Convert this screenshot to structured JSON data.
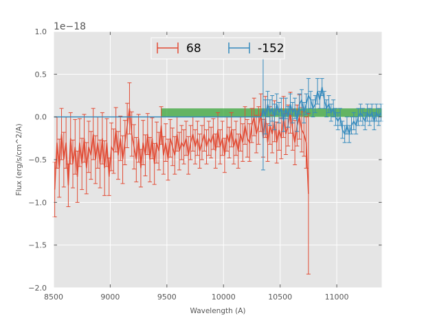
{
  "chart_data": {
    "type": "line",
    "title": "",
    "xlabel": "Wavelength (A)",
    "ylabel": "Flux (erg/s/cm^2/A)",
    "y_offset_label": "1e−18",
    "xlim": [
      8500,
      11400
    ],
    "ylim": [
      -2.0,
      1.0
    ],
    "y_scale_factor": 1e-18,
    "xticks": [
      8500,
      9000,
      9500,
      10000,
      10500,
      11000
    ],
    "xtick_labels": [
      "8500",
      "9000",
      "9500",
      "10000",
      "10500",
      "11000"
    ],
    "yticks": [
      -2.0,
      -1.5,
      -1.0,
      -0.5,
      0.0,
      0.5,
      1.0
    ],
    "ytick_labels": [
      "−2.0",
      "−1.5",
      "−1.0",
      "−0.5",
      "0.0",
      "0.5",
      "1.0"
    ],
    "grid": true,
    "background": "#e5e5e5",
    "legend": {
      "placement": "top-center",
      "columns": 2
    },
    "series": [
      {
        "name": "68",
        "color": "#e24a33",
        "x": [
          8510,
          8530,
          8550,
          8570,
          8590,
          8610,
          8630,
          8650,
          8670,
          8690,
          8710,
          8730,
          8750,
          8770,
          8790,
          8810,
          8830,
          8850,
          8870,
          8890,
          8910,
          8930,
          8950,
          8970,
          8990,
          9010,
          9030,
          9050,
          9070,
          9090,
          9110,
          9130,
          9150,
          9170,
          9190,
          9210,
          9230,
          9250,
          9270,
          9290,
          9310,
          9330,
          9350,
          9370,
          9390,
          9410,
          9430,
          9450,
          9470,
          9490,
          9510,
          9530,
          9550,
          9570,
          9590,
          9610,
          9630,
          9650,
          9670,
          9690,
          9710,
          9730,
          9750,
          9770,
          9790,
          9810,
          9830,
          9850,
          9870,
          9890,
          9910,
          9930,
          9950,
          9970,
          9990,
          10010,
          10030,
          10050,
          10070,
          10090,
          10110,
          10130,
          10150,
          10170,
          10190,
          10210,
          10230,
          10250,
          10270,
          10290,
          10310,
          10330,
          10350,
          10370,
          10390,
          10410,
          10430,
          10450,
          10470,
          10490,
          10510,
          10530,
          10550,
          10570,
          10590,
          10610,
          10630,
          10650,
          10670,
          10690,
          10710,
          10730,
          10750
        ],
        "y": [
          -0.85,
          -0.3,
          -0.6,
          -0.2,
          -0.5,
          -0.3,
          -0.8,
          -0.25,
          -0.55,
          -0.35,
          -0.7,
          -0.3,
          -0.55,
          -0.25,
          -0.6,
          -0.35,
          -0.45,
          -0.2,
          -0.5,
          -0.3,
          -0.55,
          -0.25,
          -0.6,
          -0.3,
          -0.7,
          -0.35,
          -0.4,
          -0.15,
          -0.45,
          -0.25,
          -0.5,
          -0.3,
          -0.1,
          0.1,
          -0.2,
          -0.35,
          -0.5,
          -0.25,
          -0.6,
          -0.3,
          -0.45,
          -0.2,
          -0.5,
          -0.25,
          -0.55,
          -0.3,
          -0.4,
          -0.1,
          -0.45,
          -0.3,
          -0.5,
          -0.25,
          -0.35,
          -0.45,
          -0.2,
          -0.4,
          -0.3,
          -0.35,
          -0.25,
          -0.45,
          -0.3,
          -0.2,
          -0.35,
          -0.25,
          -0.4,
          -0.3,
          -0.2,
          -0.35,
          -0.25,
          -0.3,
          -0.2,
          -0.4,
          -0.15,
          -0.35,
          -0.25,
          -0.45,
          -0.2,
          -0.3,
          -0.15,
          -0.35,
          -0.25,
          -0.4,
          -0.2,
          -0.3,
          -0.1,
          -0.25,
          -0.3,
          -0.1,
          0.0,
          -0.2,
          -0.1,
          0.05,
          -0.25,
          0.0,
          -0.3,
          -0.1,
          -0.2,
          -0.05,
          -0.3,
          -0.15,
          -0.25,
          0.0,
          -0.2,
          -0.1,
          0.05,
          -0.15,
          -0.3,
          -0.1,
          0.0,
          -0.15,
          -0.2,
          -0.3,
          -0.9
        ],
        "yerr": [
          0.32,
          0.3,
          0.34,
          0.3,
          0.32,
          0.3,
          0.25,
          0.3,
          0.28,
          0.32,
          0.3,
          0.28,
          0.3,
          0.28,
          0.3,
          0.3,
          0.28,
          0.3,
          0.28,
          0.3,
          0.28,
          0.3,
          0.32,
          0.28,
          0.22,
          0.28,
          0.26,
          0.26,
          0.28,
          0.26,
          0.28,
          0.26,
          0.26,
          0.3,
          0.26,
          0.26,
          0.26,
          0.28,
          0.22,
          0.26,
          0.24,
          0.24,
          0.26,
          0.24,
          0.24,
          0.24,
          0.22,
          0.22,
          0.22,
          0.22,
          0.24,
          0.22,
          0.22,
          0.22,
          0.2,
          0.22,
          0.2,
          0.2,
          0.2,
          0.22,
          0.2,
          0.2,
          0.2,
          0.2,
          0.2,
          0.2,
          0.2,
          0.2,
          0.2,
          0.18,
          0.18,
          0.2,
          0.2,
          0.2,
          0.2,
          0.2,
          0.2,
          0.18,
          0.2,
          0.2,
          0.2,
          0.2,
          0.2,
          0.22,
          0.22,
          0.22,
          0.22,
          0.2,
          0.22,
          0.22,
          0.22,
          0.22,
          0.22,
          0.24,
          0.22,
          0.22,
          0.22,
          0.24,
          0.24,
          0.24,
          0.24,
          0.24,
          0.24,
          0.24,
          0.24,
          0.24,
          0.26,
          0.24,
          0.26,
          0.26,
          0.26,
          0.3,
          0.94
        ]
      },
      {
        "name": "-152",
        "color": "#348abd",
        "x": [
          8500,
          8600,
          8700,
          8800,
          8900,
          9000,
          9100,
          9200,
          9300,
          9400,
          9500,
          9600,
          9700,
          9800,
          9900,
          10000,
          10100,
          10200,
          10300,
          10335,
          10350,
          10370,
          10390,
          10410,
          10430,
          10450,
          10470,
          10490,
          10510,
          10530,
          10550,
          10570,
          10590,
          10610,
          10630,
          10650,
          10670,
          10690,
          10710,
          10730,
          10750,
          10770,
          10790,
          10810,
          10830,
          10850,
          10870,
          10890,
          10910,
          10930,
          10950,
          10970,
          10990,
          11010,
          11030,
          11050,
          11070,
          11090,
          11110,
          11130,
          11150,
          11170,
          11190,
          11210,
          11230,
          11250,
          11270,
          11290,
          11310,
          11330,
          11350,
          11370,
          11390
        ],
        "y": [
          0.0,
          0.0,
          0.0,
          0.0,
          0.0,
          0.0,
          0.0,
          0.0,
          0.0,
          0.0,
          0.0,
          0.0,
          0.0,
          0.0,
          0.0,
          0.0,
          0.0,
          0.0,
          0.0,
          0.0,
          0.1,
          0.0,
          0.15,
          0.05,
          0.1,
          0.0,
          0.15,
          0.05,
          0.1,
          -0.05,
          0.1,
          0.0,
          0.15,
          0.05,
          0.1,
          -0.05,
          0.15,
          0.2,
          0.05,
          0.15,
          0.25,
          0.2,
          0.1,
          0.15,
          0.3,
          0.2,
          0.35,
          0.2,
          0.1,
          0.15,
          0.05,
          0.1,
          0.0,
          -0.05,
          0.0,
          -0.15,
          -0.2,
          -0.1,
          -0.2,
          -0.1,
          -0.05,
          -0.1,
          0.0,
          0.05,
          0.0,
          -0.05,
          0.05,
          0.0,
          0.05,
          -0.05,
          0.05,
          0.0,
          0.05
        ],
        "yerr": [
          0.0,
          0.0,
          0.0,
          0.0,
          0.0,
          0.0,
          0.0,
          0.0,
          0.0,
          0.0,
          0.0,
          0.0,
          0.0,
          0.0,
          0.0,
          0.0,
          0.0,
          0.0,
          0.0,
          0.0,
          0.72,
          0.2,
          0.15,
          0.15,
          0.15,
          0.15,
          0.12,
          0.12,
          0.12,
          0.12,
          0.12,
          0.12,
          0.12,
          0.12,
          0.12,
          0.12,
          0.12,
          0.12,
          0.12,
          0.12,
          0.2,
          0.1,
          0.1,
          0.1,
          0.15,
          0.1,
          0.1,
          0.1,
          0.1,
          0.1,
          0.1,
          0.1,
          0.1,
          0.1,
          0.1,
          0.1,
          0.1,
          0.1,
          0.1,
          0.1,
          0.1,
          0.1,
          0.1,
          0.1,
          0.1,
          0.1,
          0.1,
          0.1,
          0.1,
          0.1,
          0.1,
          0.1,
          0.1
        ]
      }
    ],
    "band": {
      "color": "#2ca02c",
      "x0": 9450,
      "x1": 11400,
      "y0": 0.0,
      "y1": 0.1
    }
  }
}
